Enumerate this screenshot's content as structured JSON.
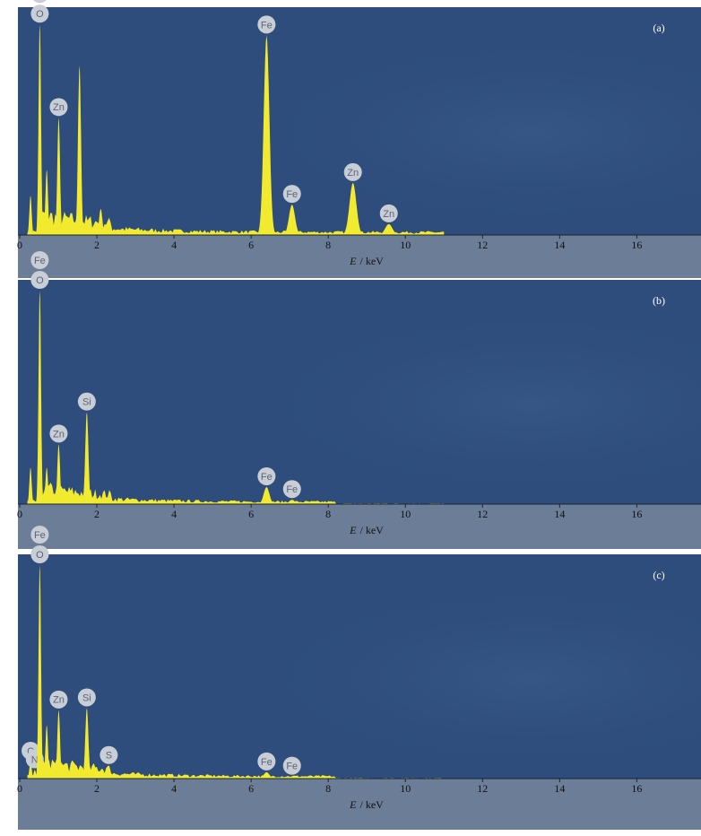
{
  "chart_data": [
    {
      "type": "spectrum",
      "panel_label": "(a)",
      "xlabel_symbol": "E",
      "xlabel_unit": "/ keV",
      "x": [
        0.28,
        0.52,
        0.7,
        1.01,
        1.55,
        2.1,
        6.4,
        7.06,
        8.64,
        9.57
      ],
      "values": [
        18,
        97,
        30,
        54,
        78,
        12,
        92,
        14,
        24,
        5
      ],
      "peak_labels": [
        null,
        [
          "O",
          "Fe"
        ],
        null,
        [
          "Zn"
        ],
        null,
        null,
        [
          "Fe"
        ],
        [
          "Fe"
        ],
        [
          "Zn"
        ],
        [
          "Zn"
        ]
      ],
      "xlim": [
        0,
        17.2
      ],
      "xticks": [
        0,
        2,
        4,
        6,
        8,
        10,
        12,
        14,
        16
      ],
      "color": "#f2ea2e"
    },
    {
      "type": "spectrum",
      "panel_label": "(b)",
      "xlabel_symbol": "E",
      "xlabel_unit": "/ keV",
      "x": [
        0.28,
        0.52,
        0.7,
        1.01,
        1.74,
        6.4,
        7.06
      ],
      "values": [
        17,
        100,
        17,
        28,
        43,
        8,
        2
      ],
      "peak_labels": [
        null,
        [
          "O",
          "Fe"
        ],
        null,
        [
          "Zn"
        ],
        [
          "Si"
        ],
        [
          "Fe"
        ],
        [
          "Fe"
        ]
      ],
      "xlim": [
        0,
        17.2
      ],
      "xticks": [
        0,
        2,
        4,
        6,
        8,
        10,
        12,
        14,
        16
      ],
      "color": "#f2ea2e"
    },
    {
      "type": "spectrum",
      "panel_label": "(c)",
      "xlabel_symbol": "E",
      "xlabel_unit": "/ keV",
      "x": [
        0.28,
        0.39,
        0.52,
        0.7,
        1.01,
        1.74,
        2.31,
        6.4,
        7.06
      ],
      "values": [
        8,
        4,
        100,
        25,
        32,
        33,
        6,
        3,
        1
      ],
      "peak_labels": [
        [
          "C"
        ],
        [
          "N"
        ],
        [
          "O",
          "Fe"
        ],
        null,
        [
          "Zn"
        ],
        [
          "Si"
        ],
        [
          "S"
        ],
        [
          "Fe"
        ],
        [
          "Fe"
        ]
      ],
      "xlim": [
        0,
        17.2
      ],
      "xticks": [
        0,
        2,
        4,
        6,
        8,
        10,
        12,
        14,
        16
      ],
      "color": "#f2ea2e"
    }
  ]
}
